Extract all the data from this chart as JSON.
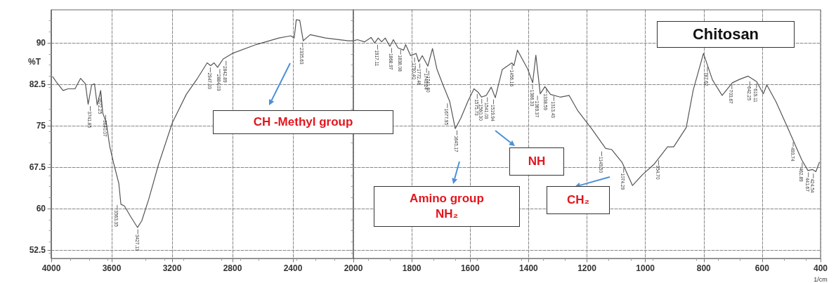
{
  "chart_data": [
    {
      "type": "line",
      "ylabel": "%T",
      "xlim": [
        4000,
        2000
      ],
      "xticks": [
        4000,
        3600,
        3200,
        2800,
        2400,
        2000
      ],
      "ylim": [
        51,
        96
      ],
      "yticks": [
        52.5,
        60,
        67.5,
        75,
        82.5,
        90
      ],
      "grid": true,
      "marker": "none",
      "line_style": "solid",
      "series": [
        {
          "color": "#555555",
          "x": [
            3991,
            3968,
            3922,
            3889,
            3843,
            3806,
            3774,
            3756,
            3733,
            3714,
            3696,
            3673,
            3659,
            3636,
            3613,
            3585,
            3553,
            3539,
            3516,
            3475,
            3429,
            3401,
            3355,
            3290,
            3198,
            3106,
            3032,
            2968,
            2945,
            2922,
            2899,
            2862,
            2802,
            2645,
            2493,
            2415,
            2392,
            2378,
            2355,
            2332,
            2286,
            2184,
            2032,
            2000
          ],
          "values": [
            83.9,
            83.0,
            81.4,
            81.7,
            81.7,
            83.6,
            82.6,
            78.9,
            82.4,
            82.6,
            78.8,
            81.4,
            77.3,
            75.6,
            71.3,
            68.0,
            64.6,
            60.8,
            60.5,
            58.6,
            56.6,
            57.8,
            61.7,
            68.0,
            75.6,
            80.7,
            83.6,
            86.4,
            85.9,
            86.4,
            85.6,
            87.1,
            88.1,
            89.7,
            90.9,
            91.3,
            90.9,
            94.2,
            94.1,
            90.4,
            91.5,
            90.9,
            90.4,
            90.4
          ]
        }
      ],
      "annotations": [
        {
          "text": "3741.85",
          "x": 3741.85,
          "y": 78.9
        },
        {
          "text": "3672.25",
          "x": 3672.25,
          "y": 81.4
        },
        {
          "text": "3640.07",
          "x": 3640.07,
          "y": 77.3
        },
        {
          "text": "3563.35",
          "x": 3563.35,
          "y": 61.0
        },
        {
          "text": "3427.13",
          "x": 3427.13,
          "y": 56.6
        },
        {
          "text": "2947.03",
          "x": 2947.03,
          "y": 85.9
        },
        {
          "text": "2884.03",
          "x": 2884.03,
          "y": 85.6
        },
        {
          "text": "2842.89",
          "x": 2842.89,
          "y": 87.1
        },
        {
          "text": "2335.63",
          "x": 2335.63,
          "y": 90.4
        },
        "CH -Methyl group"
      ]
    },
    {
      "type": "line",
      "xlabel": "1/cm",
      "xlim": [
        2000,
        400
      ],
      "xticks": [
        {
          "value": 2000,
          "label": null
        },
        1800,
        1600,
        1400,
        1200,
        1000,
        800,
        600,
        400
      ],
      "ylim": [
        51,
        96
      ],
      "yticks": [
        52.5,
        60,
        67.5,
        75,
        82.5,
        90
      ],
      "grid": true,
      "marker": "none",
      "line_style": "solid",
      "tick_labels": "x",
      "series": [
        {
          "color": "#555555",
          "x": [
            2000,
            1986,
            1962,
            1939,
            1927,
            1915,
            1903,
            1891,
            1875,
            1863,
            1847,
            1828,
            1821,
            1804,
            1785,
            1776,
            1764,
            1745,
            1729,
            1714,
            1693,
            1670,
            1651,
            1632,
            1608,
            1587,
            1573,
            1561,
            1545,
            1528,
            1514,
            1490,
            1457,
            1450,
            1438,
            1403,
            1386,
            1375,
            1360,
            1344,
            1325,
            1292,
            1261,
            1231,
            1183,
            1136,
            1115,
            1080,
            1044,
            1009,
            971,
            924,
            903,
            860,
            836,
            801,
            770,
            737,
            702,
            678,
            648,
            619,
            596,
            584,
            553,
            513,
            464,
            443,
            428,
            416,
            404
          ],
          "values": [
            90.4,
            90.6,
            90.2,
            91.0,
            90.0,
            90.9,
            90.2,
            90.9,
            89.4,
            90.6,
            89.1,
            88.7,
            89.7,
            87.7,
            88.1,
            86.6,
            87.7,
            85.8,
            89.0,
            85.3,
            82.4,
            79.4,
            74.5,
            76.4,
            79.4,
            81.7,
            81.1,
            80.2,
            80.5,
            82.0,
            80.1,
            85.2,
            86.4,
            85.9,
            88.7,
            85.3,
            82.8,
            87.8,
            80.8,
            82.1,
            80.7,
            80.2,
            80.5,
            77.7,
            74.4,
            70.9,
            70.7,
            68.4,
            64.2,
            66.2,
            68.0,
            71.2,
            71.2,
            74.7,
            81.5,
            88.1,
            83.3,
            80.5,
            82.8,
            83.4,
            84.0,
            83.0,
            80.8,
            82.4,
            79.4,
            74.7,
            68.8,
            66.9,
            67.1,
            66.7,
            68.4
          ]
        }
      ],
      "annotations": [
        {
          "text": "1917.11",
          "x": 1917.11,
          "y": 90.0
        },
        {
          "text": "1868.97",
          "x": 1868.97,
          "y": 89.4
        },
        {
          "text": "1838.08",
          "x": 1838.08,
          "y": 89.1
        },
        {
          "text": "1790.40",
          "x": 1790.4,
          "y": 87.7
        },
        {
          "text": "1772.46",
          "x": 1772.46,
          "y": 86.6
        },
        {
          "text": "1749.24",
          "x": 1749.24,
          "y": 85.8
        },
        {
          "text": "1741.60",
          "x": 1741.6,
          "y": 85.3
        },
        {
          "text": "1677.95",
          "x": 1677.95,
          "y": 79.4
        },
        {
          "text": "1645.17",
          "x": 1645.17,
          "y": 74.5
        },
        {
          "text": "1575.73",
          "x": 1575.73,
          "y": 81.1
        },
        {
          "text": "1560.30",
          "x": 1560.3,
          "y": 80.2
        },
        {
          "text": "1541.03",
          "x": 1541.03,
          "y": 80.5
        },
        {
          "text": "1519.94",
          "x": 1519.94,
          "y": 80.1
        },
        {
          "text": "1456.16",
          "x": 1456.16,
          "y": 86.4
        },
        {
          "text": "1386.33",
          "x": 1386.33,
          "y": 82.8
        },
        {
          "text": "1369.37",
          "x": 1369.37,
          "y": 80.8
        },
        {
          "text": "1338.59",
          "x": 1338.59,
          "y": 82.1
        },
        {
          "text": "1313.43",
          "x": 1313.43,
          "y": 80.7
        },
        {
          "text": "1149.50",
          "x": 1149.5,
          "y": 70.7
        },
        {
          "text": "1074.29",
          "x": 1074.29,
          "y": 67.7
        },
        {
          "text": "954.70",
          "x": 954.7,
          "y": 69.1
        },
        {
          "text": "787.62",
          "x": 787.62,
          "y": 86.0
        },
        {
          "text": "703.67",
          "x": 703.67,
          "y": 82.8
        },
        {
          "text": "642.25",
          "x": 642.25,
          "y": 83.4
        },
        {
          "text": "619.11",
          "x": 619.11,
          "y": 83.0
        },
        {
          "text": "493.74",
          "x": 493.74,
          "y": 72.4
        },
        {
          "text": "462.89",
          "x": 462.89,
          "y": 68.7
        },
        {
          "text": "441.67",
          "x": 441.67,
          "y": 66.9
        },
        {
          "text": "424.54",
          "x": 424.54,
          "y": 66.7
        },
        "Amino group\nNH₂",
        "NH",
        "CH₂",
        "Chitosan"
      ]
    }
  ]
}
